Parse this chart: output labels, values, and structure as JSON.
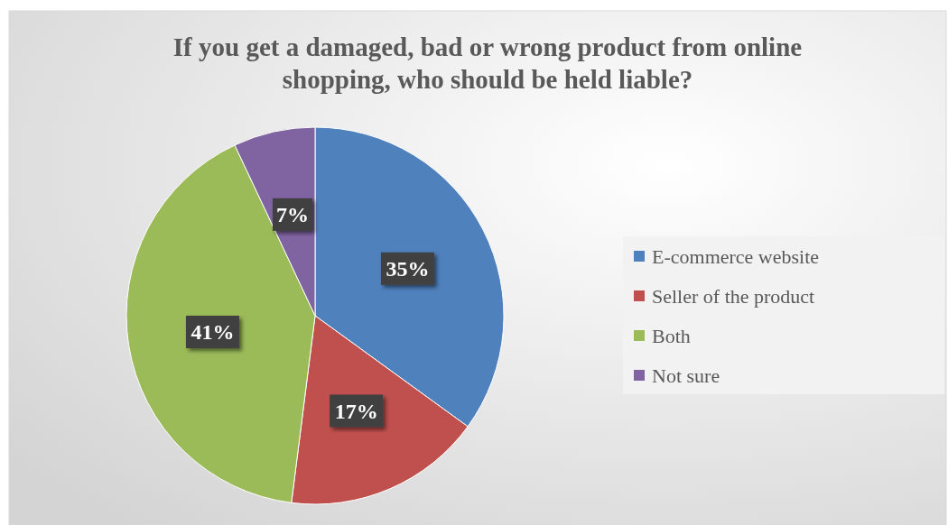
{
  "chart_data": {
    "type": "pie",
    "title": "If you get a damaged, bad or wrong product from online shopping, who should be held liable?",
    "categories": [
      "E-commerce website",
      "Seller of the product",
      "Both",
      "Not sure"
    ],
    "values": [
      35,
      17,
      41,
      7
    ],
    "value_labels": [
      "35%",
      "17%",
      "41%",
      "7%"
    ],
    "colors": [
      "#4f81bd",
      "#c0504d",
      "#9bbb59",
      "#8064a2"
    ],
    "legend": "right"
  }
}
